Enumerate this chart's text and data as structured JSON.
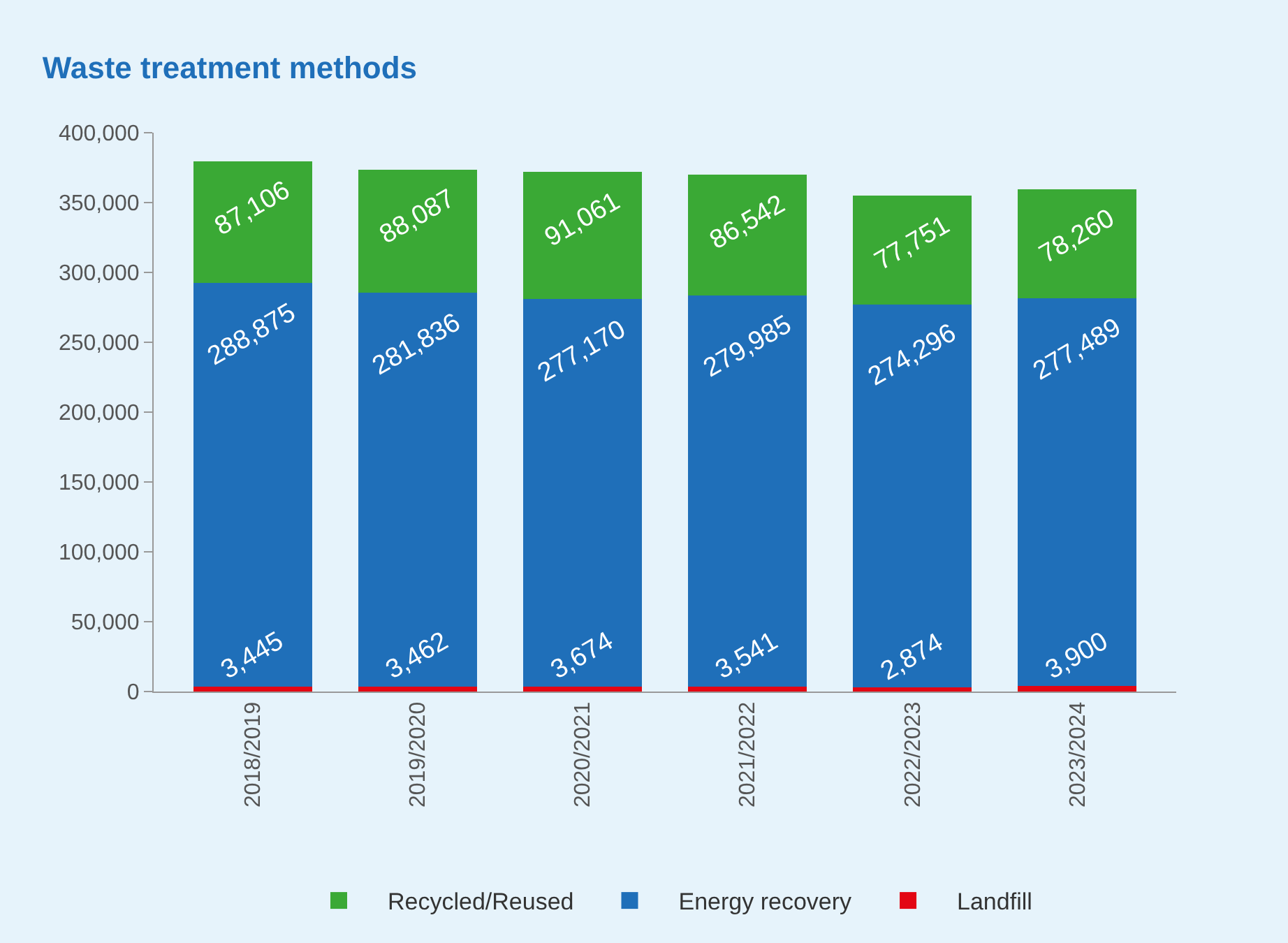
{
  "chart_data": {
    "type": "bar",
    "title": "Waste treatment methods",
    "stacked": true,
    "grid": false,
    "legend": "bottom",
    "categories": [
      "2018/2019",
      "2019/2020",
      "2020/2021",
      "2021/2022",
      "2022/2023",
      "2023/2024"
    ],
    "series": [
      {
        "name": "Landfill",
        "color": "#e30613",
        "values": [
          3445,
          3462,
          3674,
          3541,
          2874,
          3900
        ],
        "value_labels": [
          "3,445",
          "3,462",
          "3,674",
          "3,541",
          "2,874",
          "3,900"
        ]
      },
      {
        "name": "Energy recovery",
        "color": "#1f6fb9",
        "values": [
          288875,
          281836,
          277170,
          279985,
          274296,
          277489
        ],
        "value_labels": [
          "288,875",
          "281,836",
          "277,170",
          "279,985",
          "274,296",
          "277,489"
        ]
      },
      {
        "name": "Recycled/Reused",
        "color": "#3aa935",
        "values": [
          87106,
          88087,
          91061,
          86542,
          77751,
          78260
        ],
        "value_labels": [
          "87,106",
          "88,087",
          "91,061",
          "86,542",
          "77,751",
          "78,260"
        ]
      }
    ],
    "ylim": [
      0,
      400000
    ],
    "yticks": [
      {
        "value": 0,
        "label": "0"
      },
      {
        "value": 50000,
        "label": "50,000"
      },
      {
        "value": 100000,
        "label": "100,000"
      },
      {
        "value": 150000,
        "label": "150,000"
      },
      {
        "value": 200000,
        "label": "200,000"
      },
      {
        "value": 250000,
        "label": "250,000"
      },
      {
        "value": 300000,
        "label": "300,000"
      },
      {
        "value": 350000,
        "label": "350,000"
      },
      {
        "value": 400000,
        "label": "400,000"
      }
    ]
  }
}
